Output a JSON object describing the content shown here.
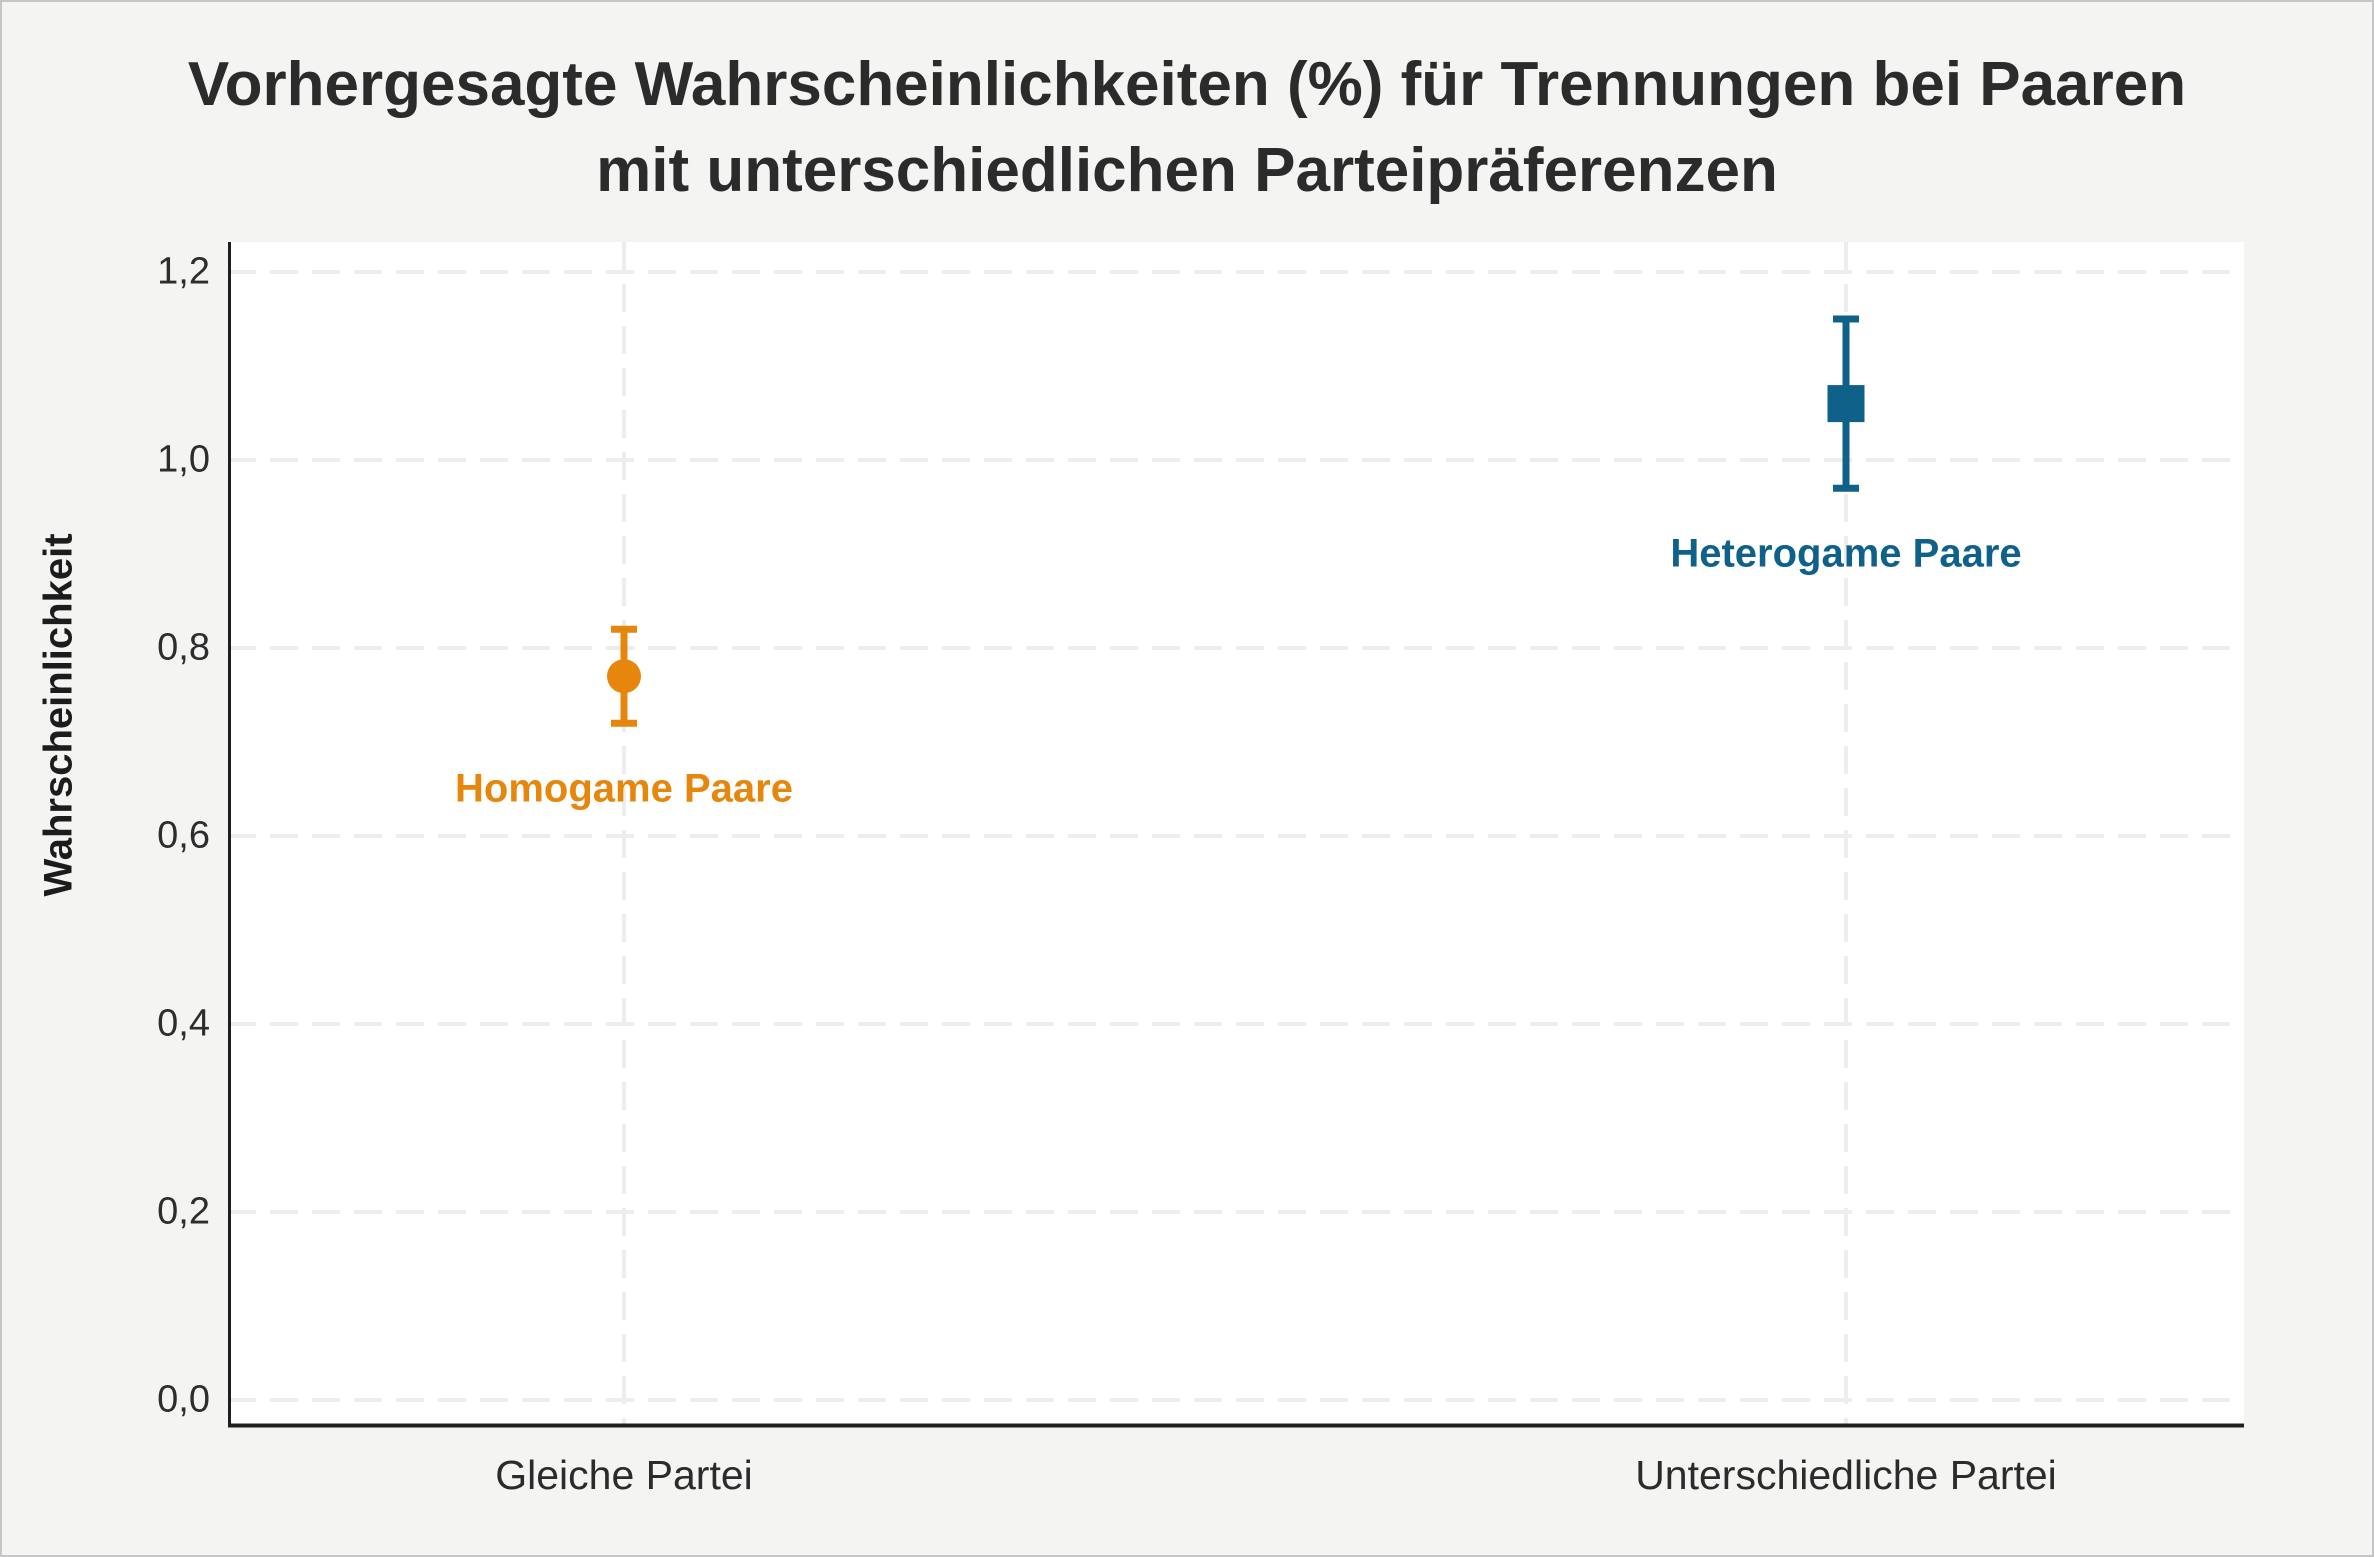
{
  "figure": {
    "background": "#f4f4f3",
    "plot_background": "#ffffff",
    "border_color": "#c6c6c6",
    "axis_color": "#1f1f1f",
    "text_color": "#2b2b2b",
    "title_lines": [
      "Vorhergesagte Wahrscheinlichkeiten (%) für Trennungen bei Paaren",
      "mit unterschiedlichen Parteipräferenzen"
    ]
  },
  "chart_data": {
    "type": "scatter",
    "subtype": "point-estimate-with-error-bars",
    "title": "Vorhergesagte Wahrscheinlichkeiten (%) für Trennungen bei Paaren mit unterschiedlichen Parteipräferenzen",
    "xlabel": "",
    "ylabel": "Wahrscheinlichkeit",
    "categories": [
      "Gleiche Partei",
      "Unterschiedliche Partei"
    ],
    "ylim": [
      -0.03,
      1.23
    ],
    "yticks": {
      "values": [
        0,
        0.2,
        0.4,
        0.6,
        0.8,
        1.0,
        1.2
      ],
      "labels": [
        "0,0",
        "0,2",
        "0,4",
        "0,6",
        "0,8",
        "1,0",
        "1,2"
      ]
    },
    "grid": {
      "visible": true,
      "style": "dashed",
      "color": "#ededed"
    },
    "legend_position": "inline-data-labels",
    "points": [
      {
        "category": "Gleiche Partei",
        "label": "Homogame Paare",
        "label_side": "below",
        "label_y": 0.65,
        "value": 0.77,
        "ci_low": 0.72,
        "ci_high": 0.82,
        "marker": "circle",
        "color": "#E7860D"
      },
      {
        "category": "Unterschiedliche Partei",
        "label": "Heterogame Paare",
        "label_side": "above",
        "label_y": 0.9,
        "value": 1.06,
        "ci_low": 0.97,
        "ci_high": 1.15,
        "marker": "square",
        "color": "#0F6189"
      }
    ]
  }
}
